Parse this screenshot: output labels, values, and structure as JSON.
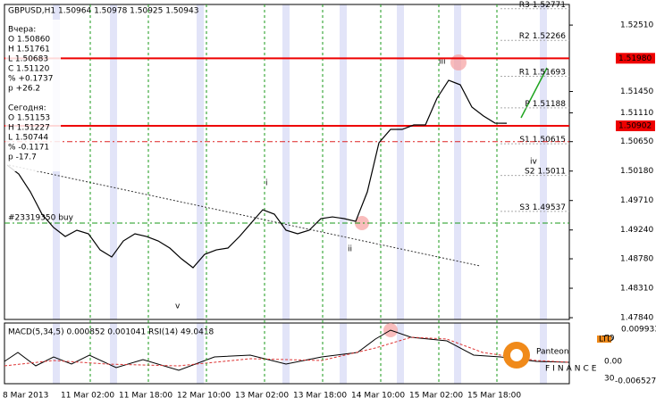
{
  "chart_data": {
    "type": "line",
    "title": "GBPUSD,H1",
    "subtitle": "1.50964 1.50978 1.50925 1.50943",
    "categories": [
      "8 Mar 2013",
      null,
      null,
      null,
      null,
      "11 Mar 02:00",
      null,
      null,
      null,
      null,
      "11 Mar 18:00",
      null,
      null,
      null,
      null,
      "12 Mar 10:00",
      null,
      null,
      null,
      null,
      "13 Mar 02:00",
      null,
      null,
      null,
      null,
      "13 Mar 18:00",
      null,
      null,
      null,
      null,
      "14 Mar 10:00",
      null,
      null,
      null,
      null,
      "15 Mar 02:00",
      null,
      null,
      null,
      null,
      "15 Mar 18:00",
      null,
      null,
      null
    ],
    "series": [
      {
        "name": "GBPUSD",
        "color": "#000000",
        "values": [
          1.50276,
          1.50133,
          1.49848,
          1.49492,
          1.49279,
          1.49136,
          1.49236,
          1.49179,
          1.48922,
          1.48809,
          1.49065,
          1.49179,
          1.49136,
          1.49065,
          1.48951,
          1.4878,
          1.48638,
          1.48851,
          1.48922,
          1.48951,
          1.49136,
          1.4935,
          1.49563,
          1.49492,
          1.49236,
          1.49179,
          1.49236,
          1.49421,
          1.49449,
          1.49421,
          1.49378,
          1.49848,
          1.50632,
          1.50845,
          1.50845,
          1.50916,
          1.50916,
          1.51344,
          1.51629,
          1.51557,
          1.51201,
          1.51059,
          1.50945,
          1.50943
        ]
      }
    ],
    "ylim": [
      1.47812,
      1.52839
    ],
    "yticks": [
      {
        "value": 1.5251,
        "label": "1.52510"
      },
      {
        "value": 1.5145,
        "label": "1.51450"
      },
      {
        "value": 1.5111,
        "label": "1.51110"
      },
      {
        "value": 1.5065,
        "label": "1.50650"
      },
      {
        "value": 1.5018,
        "label": "1.50180"
      },
      {
        "value": 1.4971,
        "label": "1.49710"
      },
      {
        "value": 1.4924,
        "label": "1.49240"
      },
      {
        "value": 1.4878,
        "label": "1.48780"
      },
      {
        "value": 1.4831,
        "label": "1.48310"
      },
      {
        "value": 1.4784,
        "label": "1.47840"
      }
    ],
    "levels": [
      {
        "value": 1.5198,
        "label": "1.51980"
      },
      {
        "value": 1.50902,
        "label": "1.50902"
      }
    ],
    "stop_level": 1.5065,
    "order": {
      "label": "#23319350 buy",
      "value": 1.4935
    },
    "pivots": [
      {
        "name": "R3",
        "value": 1.52771
      },
      {
        "name": "R2",
        "value": 1.52266
      },
      {
        "name": "R1",
        "value": 1.51693
      },
      {
        "name": "P",
        "value": 1.51188
      },
      {
        "name": "S1",
        "value": 1.50615
      },
      {
        "name": "S2",
        "value": 1.5011
      },
      {
        "name": "S3",
        "value": 1.49537
      }
    ],
    "info_box": [
      "Вчера:",
      "O 1.50860",
      "H 1.51761",
      "L 1.50683",
      "C 1.51120",
      "% +0.1737",
      "p +26.2",
      "",
      "Сегодня:",
      "O 1.51153",
      "H 1.51227",
      "L 1.50744",
      "% -0.1171",
      "p -17.7"
    ],
    "waves": [
      "i",
      "ii",
      "iii",
      "iv",
      "v"
    ],
    "indicator": {
      "title": "MACD(5,34,5) 0.000852 0.001041 RSI(14) 49.0418",
      "labels": [
        "0.009933",
        "70",
        "0.00",
        "30",
        "-0.006527"
      ]
    },
    "logo": {
      "name": "Panteon",
      "sub": "FINANCE",
      "tag": "LTD"
    }
  }
}
